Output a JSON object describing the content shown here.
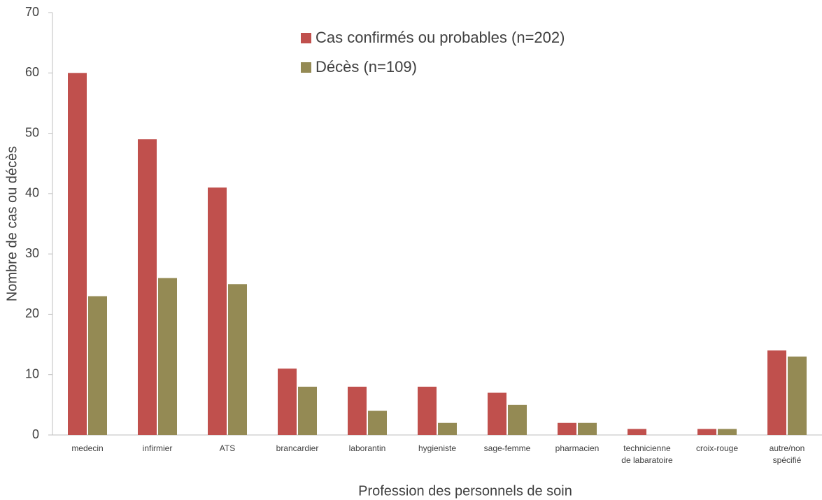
{
  "chart_data": {
    "type": "bar",
    "x_label": "Profession des personnels de soin",
    "y_label": "Nombre de cas ou décès",
    "categories": [
      "medecin",
      "infirmier",
      "ATS",
      "brancardier",
      "laborantin",
      "hygieniste",
      "sage-femme",
      "pharmacien",
      "technicienne\nde labaratoire",
      "croix-rouge",
      "autre/non\nspécifié"
    ],
    "series": [
      {
        "name": "Cas confirmés ou probables (n=202)",
        "color": "#c0504d",
        "values": [
          60,
          49,
          41,
          11,
          8,
          8,
          7,
          2,
          1,
          1,
          14
        ]
      },
      {
        "name": "Décès (n=109)",
        "color": "#948a54",
        "values": [
          23,
          26,
          25,
          8,
          4,
          2,
          5,
          2,
          0,
          1,
          13
        ]
      }
    ],
    "ylim": [
      0,
      70
    ],
    "yticks": [
      0,
      10,
      20,
      30,
      40,
      50,
      60,
      70
    ],
    "grid": false,
    "legend": "upper center"
  }
}
